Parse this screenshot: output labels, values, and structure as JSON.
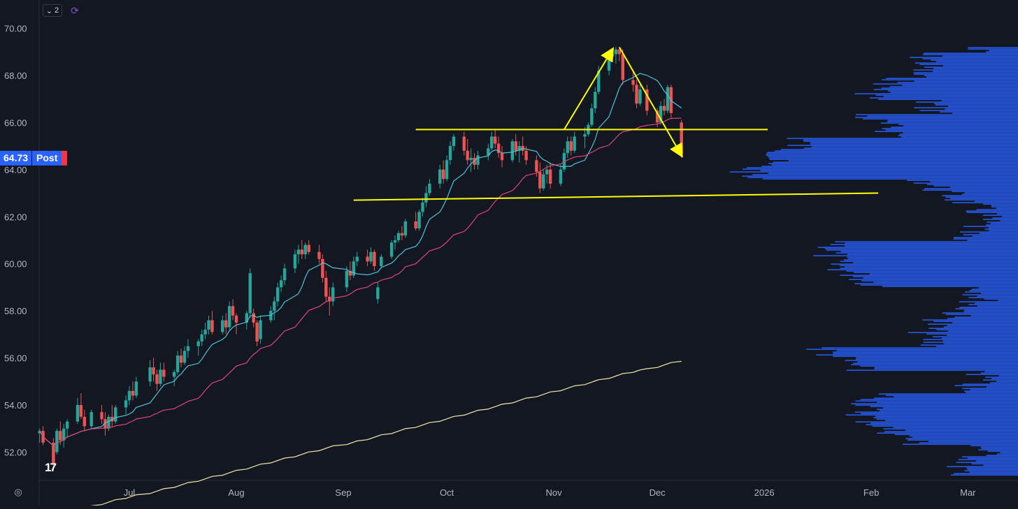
{
  "toolbar": {
    "indicator_count": "2",
    "indicator_chevron_icon": "chevron-down-icon",
    "compare_icon": "refresh-cycle-icon"
  },
  "price_tag": {
    "value": "64.73",
    "label": "Post"
  },
  "colors": {
    "background": "#131722",
    "up": "#26a69a",
    "down": "#ef5350",
    "sma_fast": "#4fc3d8",
    "sma_mid": "#e0457a",
    "sma_slow": "#f2e6a8",
    "drawings": "#ffff00",
    "volume_profile": "#2962ff"
  },
  "chart_data": {
    "type": "candlestick",
    "y_axis": {
      "range": [
        50.8,
        71.2
      ],
      "ticks": [
        "70.00",
        "68.00",
        "66.00",
        "64.00",
        "62.00",
        "60.00",
        "58.00",
        "56.00",
        "54.00",
        "52.00"
      ]
    },
    "x_axis": {
      "ticks": [
        {
          "label": "Jul",
          "date": "2025-07-01"
        },
        {
          "label": "Aug",
          "date": "2025-08-01"
        },
        {
          "label": "Sep",
          "date": "2025-09-01"
        },
        {
          "label": "Oct",
          "date": "2025-10-01"
        },
        {
          "label": "Nov",
          "date": "2025-11-01"
        },
        {
          "label": "Dec",
          "date": "2025-12-01"
        },
        {
          "label": "2026",
          "date": "2026-01-01"
        },
        {
          "label": "Feb",
          "date": "2026-02-01"
        },
        {
          "label": "Mar",
          "date": "2026-03-01"
        }
      ]
    },
    "candles": [
      [
        "2025-06-05",
        52.8,
        53.0,
        52.4,
        52.9
      ],
      [
        "2025-06-06",
        52.9,
        53.1,
        52.3,
        52.4
      ],
      [
        "2025-06-09",
        52.4,
        52.6,
        51.4,
        51.5
      ],
      [
        "2025-06-10",
        52.0,
        53.0,
        51.9,
        52.9
      ],
      [
        "2025-06-11",
        52.9,
        53.3,
        52.3,
        52.5
      ],
      [
        "2025-06-12",
        52.5,
        53.2,
        52.2,
        53.0
      ],
      [
        "2025-06-13",
        53.0,
        53.4,
        52.6,
        53.3
      ],
      [
        "2025-06-16",
        53.3,
        54.3,
        53.2,
        54.0
      ],
      [
        "2025-06-17",
        54.0,
        54.5,
        53.4,
        53.5
      ],
      [
        "2025-06-18",
        53.5,
        53.8,
        52.9,
        53.1
      ],
      [
        "2025-06-20",
        53.1,
        53.8,
        53.0,
        53.7
      ],
      [
        "2025-06-23",
        53.7,
        54.0,
        53.2,
        53.4
      ],
      [
        "2025-06-24",
        53.4,
        53.7,
        52.7,
        53.0
      ],
      [
        "2025-06-25",
        53.0,
        53.6,
        52.9,
        53.5
      ],
      [
        "2025-06-26",
        53.5,
        54.0,
        53.1,
        53.3
      ],
      [
        "2025-06-27",
        53.3,
        54.0,
        53.2,
        53.9
      ],
      [
        "2025-06-30",
        53.9,
        54.4,
        53.6,
        54.2
      ],
      [
        "2025-07-01",
        54.2,
        54.8,
        54.0,
        54.6
      ],
      [
        "2025-07-02",
        54.6,
        55.0,
        54.2,
        54.4
      ],
      [
        "2025-07-03",
        54.4,
        55.2,
        54.3,
        55.0
      ],
      [
        "2025-07-07",
        55.0,
        55.9,
        54.8,
        55.6
      ],
      [
        "2025-07-08",
        55.6,
        56.0,
        55.0,
        55.3
      ],
      [
        "2025-07-09",
        55.3,
        55.5,
        54.6,
        54.9
      ],
      [
        "2025-07-10",
        54.9,
        55.8,
        54.8,
        55.5
      ],
      [
        "2025-07-11",
        55.5,
        55.8,
        55.0,
        55.2
      ],
      [
        "2025-07-14",
        55.2,
        55.5,
        54.8,
        55.4
      ],
      [
        "2025-07-15",
        55.4,
        56.3,
        55.3,
        56.1
      ],
      [
        "2025-07-16",
        56.1,
        56.4,
        55.6,
        55.8
      ],
      [
        "2025-07-17",
        55.8,
        56.5,
        55.7,
        56.3
      ],
      [
        "2025-07-18",
        56.3,
        56.8,
        56.0,
        56.5
      ],
      [
        "2025-07-21",
        56.5,
        56.8,
        56.1,
        56.7
      ],
      [
        "2025-07-22",
        56.7,
        57.2,
        56.5,
        57.0
      ],
      [
        "2025-07-23",
        57.0,
        57.5,
        56.8,
        57.2
      ],
      [
        "2025-07-24",
        57.2,
        57.8,
        57.0,
        57.6
      ],
      [
        "2025-07-25",
        57.6,
        58.0,
        57.0,
        57.1
      ],
      [
        "2025-07-28",
        57.1,
        57.8,
        57.0,
        57.6
      ],
      [
        "2025-07-29",
        57.6,
        57.9,
        57.0,
        57.3
      ],
      [
        "2025-07-30",
        57.3,
        58.4,
        57.2,
        58.2
      ],
      [
        "2025-07-31",
        58.2,
        58.5,
        57.6,
        57.8
      ],
      [
        "2025-08-01",
        57.8,
        57.9,
        57.0,
        57.5
      ],
      [
        "2025-08-04",
        57.5,
        58.0,
        57.2,
        57.9
      ],
      [
        "2025-08-05",
        57.9,
        59.8,
        57.7,
        59.6
      ],
      [
        "2025-08-06",
        57.9,
        58.1,
        57.3,
        57.5
      ],
      [
        "2025-08-07",
        57.5,
        57.6,
        56.5,
        56.7
      ],
      [
        "2025-08-08",
        56.8,
        57.8,
        56.6,
        57.6
      ],
      [
        "2025-08-11",
        57.6,
        58.2,
        57.5,
        58.0
      ],
      [
        "2025-08-12",
        58.0,
        58.6,
        57.6,
        58.4
      ],
      [
        "2025-08-13",
        58.4,
        59.2,
        58.2,
        59.0
      ],
      [
        "2025-08-14",
        59.0,
        59.5,
        58.8,
        59.3
      ],
      [
        "2025-08-15",
        59.3,
        60.0,
        59.1,
        59.8
      ],
      [
        "2025-08-18",
        59.8,
        60.6,
        59.6,
        60.4
      ],
      [
        "2025-08-19",
        60.4,
        60.8,
        60.0,
        60.6
      ],
      [
        "2025-08-20",
        60.6,
        61.0,
        60.2,
        60.4
      ],
      [
        "2025-08-21",
        60.4,
        60.9,
        60.2,
        60.8
      ],
      [
        "2025-08-22",
        60.8,
        61.0,
        60.4,
        60.5
      ],
      [
        "2025-08-25",
        60.5,
        60.8,
        60.0,
        60.2
      ],
      [
        "2025-08-26",
        60.2,
        60.4,
        59.2,
        59.4
      ],
      [
        "2025-08-27",
        59.4,
        59.7,
        58.4,
        58.6
      ],
      [
        "2025-08-28",
        58.6,
        59.0,
        57.8,
        58.4
      ],
      [
        "2025-08-29",
        58.4,
        59.2,
        58.2,
        59.0
      ],
      [
        "2025-09-02",
        59.0,
        59.9,
        58.8,
        59.7
      ],
      [
        "2025-09-03",
        59.7,
        60.1,
        59.3,
        59.5
      ],
      [
        "2025-09-04",
        59.5,
        60.3,
        59.4,
        60.1
      ],
      [
        "2025-09-05",
        60.1,
        60.5,
        59.9,
        60.3
      ],
      [
        "2025-09-08",
        60.3,
        60.6,
        59.9,
        60.1
      ],
      [
        "2025-09-09",
        60.1,
        60.7,
        60.0,
        60.5
      ],
      [
        "2025-09-10",
        60.5,
        60.6,
        59.7,
        59.9
      ],
      [
        "2025-09-11",
        58.5,
        59.2,
        58.3,
        59.0
      ],
      [
        "2025-09-12",
        59.9,
        60.4,
        59.8,
        60.3
      ],
      [
        "2025-09-15",
        60.3,
        61.0,
        60.2,
        60.9
      ],
      [
        "2025-09-16",
        60.9,
        61.2,
        60.6,
        61.0
      ],
      [
        "2025-09-17",
        61.0,
        61.4,
        60.9,
        61.3
      ],
      [
        "2025-09-18",
        61.3,
        61.6,
        61.0,
        61.2
      ],
      [
        "2025-09-19",
        61.2,
        61.9,
        61.1,
        61.8
      ],
      [
        "2025-09-22",
        61.8,
        62.2,
        61.4,
        61.5
      ],
      [
        "2025-09-23",
        61.5,
        62.3,
        61.4,
        62.2
      ],
      [
        "2025-09-24",
        62.2,
        62.8,
        62.0,
        62.6
      ],
      [
        "2025-09-25",
        62.6,
        63.3,
        62.4,
        63.0
      ],
      [
        "2025-09-26",
        63.0,
        63.6,
        62.9,
        63.4
      ],
      [
        "2025-09-29",
        63.4,
        64.2,
        63.2,
        64.0
      ],
      [
        "2025-09-30",
        64.0,
        64.4,
        63.4,
        63.6
      ],
      [
        "2025-10-01",
        63.6,
        64.6,
        63.5,
        64.4
      ],
      [
        "2025-10-02",
        64.4,
        65.2,
        64.2,
        65.0
      ],
      [
        "2025-10-03",
        65.0,
        65.5,
        64.8,
        65.4
      ],
      [
        "2025-10-06",
        65.4,
        65.6,
        64.6,
        64.8
      ],
      [
        "2025-10-07",
        64.8,
        65.3,
        64.2,
        64.4
      ],
      [
        "2025-10-08",
        64.4,
        64.9,
        63.9,
        64.5
      ],
      [
        "2025-10-09",
        64.5,
        64.7,
        64.0,
        64.2
      ],
      [
        "2025-10-10",
        64.2,
        64.8,
        64.0,
        64.6
      ],
      [
        "2025-10-13",
        64.6,
        65.1,
        64.4,
        64.9
      ],
      [
        "2025-10-14",
        64.9,
        65.6,
        64.8,
        65.4
      ],
      [
        "2025-10-15",
        65.4,
        65.7,
        64.9,
        65.1
      ],
      [
        "2025-10-16",
        65.1,
        65.4,
        64.5,
        64.7
      ],
      [
        "2025-10-17",
        64.7,
        65.0,
        64.1,
        64.4
      ],
      [
        "2025-10-20",
        64.4,
        65.3,
        64.3,
        65.2
      ],
      [
        "2025-10-21",
        65.2,
        65.5,
        64.6,
        64.8
      ],
      [
        "2025-10-22",
        64.8,
        65.2,
        64.3,
        65.0
      ],
      [
        "2025-10-23",
        65.0,
        65.4,
        64.6,
        64.8
      ],
      [
        "2025-10-24",
        64.8,
        65.0,
        64.2,
        64.4
      ],
      [
        "2025-10-27",
        64.4,
        64.6,
        63.7,
        63.9
      ],
      [
        "2025-10-28",
        63.9,
        64.3,
        63.0,
        63.2
      ],
      [
        "2025-10-29",
        63.2,
        64.0,
        63.1,
        63.8
      ],
      [
        "2025-10-30",
        63.8,
        64.2,
        63.4,
        64.0
      ],
      [
        "2025-10-31",
        64.0,
        64.3,
        63.2,
        63.4
      ],
      [
        "2025-11-03",
        63.4,
        64.2,
        63.3,
        64.0
      ],
      [
        "2025-11-04",
        64.0,
        64.9,
        63.9,
        64.7
      ],
      [
        "2025-11-05",
        64.7,
        65.4,
        64.5,
        65.2
      ],
      [
        "2025-11-06",
        65.2,
        65.4,
        64.6,
        64.8
      ],
      [
        "2025-11-07",
        64.8,
        65.6,
        64.7,
        65.4
      ],
      [
        "2025-11-10",
        65.4,
        65.8,
        64.9,
        65.5
      ],
      [
        "2025-11-11",
        65.5,
        66.0,
        65.4,
        65.9
      ],
      [
        "2025-11-12",
        65.9,
        66.8,
        65.8,
        66.6
      ],
      [
        "2025-11-13",
        66.6,
        67.5,
        66.4,
        67.3
      ],
      [
        "2025-11-14",
        67.3,
        68.4,
        67.2,
        68.2
      ],
      [
        "2025-11-17",
        68.2,
        69.0,
        68.0,
        68.8
      ],
      [
        "2025-11-18",
        68.8,
        69.1,
        68.6,
        68.9
      ],
      [
        "2025-11-19",
        68.9,
        69.2,
        68.5,
        69.1
      ],
      [
        "2025-11-20",
        69.1,
        69.2,
        68.6,
        68.9
      ],
      [
        "2025-11-21",
        68.9,
        69.1,
        67.6,
        67.8
      ],
      [
        "2025-11-24",
        67.8,
        68.2,
        67.3,
        67.6
      ],
      [
        "2025-11-25",
        67.6,
        67.8,
        66.6,
        66.8
      ],
      [
        "2025-11-26",
        66.8,
        67.6,
        66.7,
        67.4
      ],
      [
        "2025-11-28",
        67.4,
        67.6,
        66.3,
        66.5
      ],
      [
        "2025-12-01",
        66.5,
        66.6,
        65.8,
        66.0
      ],
      [
        "2025-12-02",
        66.0,
        66.9,
        65.9,
        66.7
      ],
      [
        "2025-12-03",
        66.7,
        67.0,
        66.3,
        66.5
      ],
      [
        "2025-12-04",
        66.5,
        67.6,
        66.4,
        67.5
      ],
      [
        "2025-12-05",
        67.5,
        67.6,
        66.2,
        66.4
      ],
      [
        "2025-12-08",
        66.0,
        66.1,
        64.5,
        64.7
      ]
    ],
    "drawings": [
      {
        "name": "resistance-line",
        "points": [
          [
            "2025-09-22",
            65.7
          ],
          [
            "2026-01-02",
            65.7
          ]
        ]
      },
      {
        "name": "support-line",
        "points": [
          [
            "2025-09-04",
            62.7
          ],
          [
            "2026-02-03",
            63.0
          ]
        ]
      },
      {
        "name": "arrow-up",
        "points": [
          [
            "2025-11-04",
            65.7
          ],
          [
            "2025-11-18",
            69.1
          ]
        ]
      },
      {
        "name": "arrow-down",
        "points": [
          [
            "2025-11-20",
            69.2
          ],
          [
            "2025-12-08",
            64.6
          ]
        ]
      }
    ]
  }
}
